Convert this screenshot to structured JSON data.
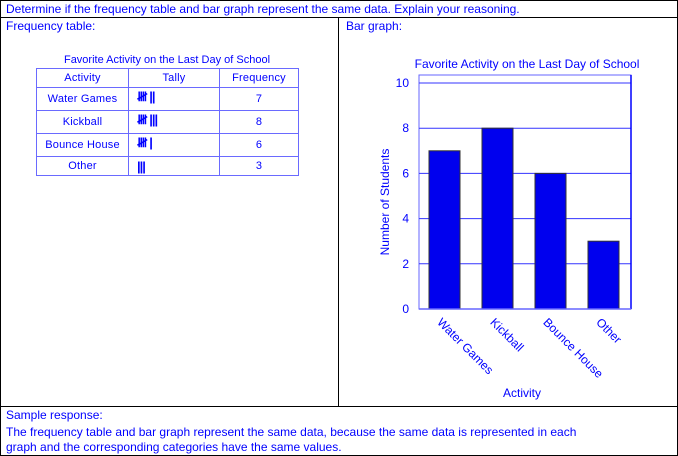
{
  "prompt": "Determine if the frequency table and bar graph represent the same data. Explain your reasoning.",
  "left_panel": {
    "label": "Frequency table:"
  },
  "right_panel": {
    "label": "Bar graph:"
  },
  "table": {
    "title": "Favorite Activity on the Last Day of School",
    "headers": [
      "Activity",
      "Tally",
      "Frequency"
    ],
    "rows": [
      {
        "activity": "Water Games",
        "tally": "𝍸 ||",
        "frequency": "7"
      },
      {
        "activity": "Kickball",
        "tally": "𝍸 |||",
        "frequency": "8"
      },
      {
        "activity": "Bounce House",
        "tally": "𝍸 |",
        "frequency": "6"
      },
      {
        "activity": "Other",
        "tally": "|||",
        "frequency": "3"
      }
    ]
  },
  "response": {
    "label": "Sample response:",
    "line1": "The frequency table and bar graph represent the same data, because the same data is represented in each",
    "line2": "graph and the corresponding categories have the same values."
  },
  "colors": {
    "text": "#0000ff",
    "bar": "#0000ee",
    "grid": "#3333ff",
    "border": "#000000"
  },
  "chart_data": {
    "type": "bar",
    "title": "Favorite Activity on the Last Day of School",
    "categories": [
      "Water Games",
      "Kickball",
      "Bounce House",
      "Other"
    ],
    "values": [
      7,
      8,
      6,
      3
    ],
    "xlabel": "Activity",
    "ylabel": "Number of Students",
    "ylim": [
      0,
      10
    ],
    "yticks": [
      0,
      2,
      4,
      6,
      8,
      10
    ],
    "grid": true,
    "legend": null
  }
}
